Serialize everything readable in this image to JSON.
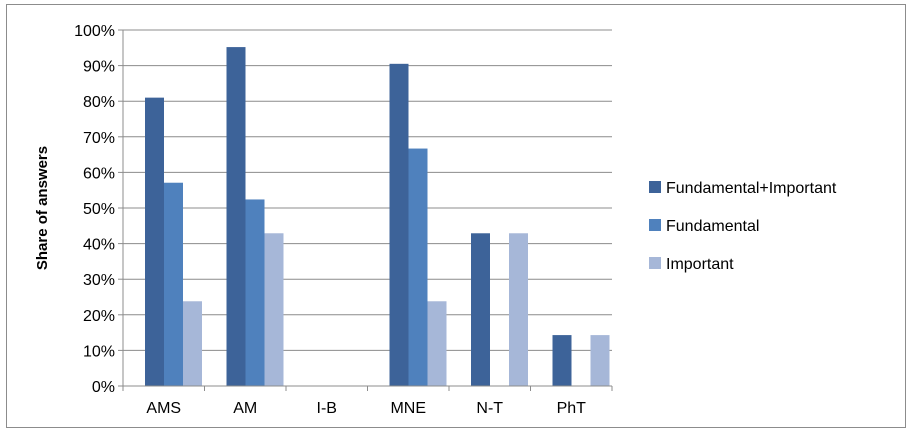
{
  "chart_data": {
    "type": "bar",
    "categories": [
      "AMS",
      "AM",
      "I-B",
      "MNE",
      "N-T",
      "PhT"
    ],
    "series": [
      {
        "name": "Fundamental+Important",
        "color": "#3d6399",
        "values": [
          81,
          95.2,
          0,
          90.5,
          42.9,
          14.3
        ]
      },
      {
        "name": "Fundamental",
        "color": "#4f81bd",
        "values": [
          57.1,
          52.4,
          0,
          66.7,
          0,
          0
        ]
      },
      {
        "name": "Important",
        "color": "#a6b7d8",
        "values": [
          23.8,
          42.9,
          0,
          23.8,
          42.9,
          14.3
        ]
      }
    ],
    "title": "",
    "xlabel": "",
    "ylabel": "Share of answers",
    "ylim": [
      0,
      100
    ],
    "yticks": [
      "0%",
      "10%",
      "20%",
      "30%",
      "40%",
      "50%",
      "60%",
      "70%",
      "80%",
      "90%",
      "100%"
    ],
    "grid": true,
    "legend_position": "right"
  }
}
